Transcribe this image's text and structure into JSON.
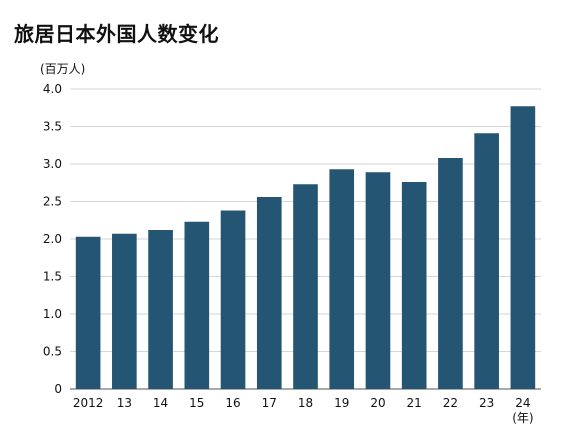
{
  "chart_data": {
    "type": "bar",
    "title": "旅居日本外国人数变化",
    "ylabel": "(百万人)",
    "xlabel": "(年)",
    "categories": [
      "2012",
      "13",
      "14",
      "15",
      "16",
      "17",
      "18",
      "19",
      "20",
      "21",
      "22",
      "23",
      "24"
    ],
    "values": [
      2.03,
      2.07,
      2.12,
      2.23,
      2.38,
      2.56,
      2.73,
      2.93,
      2.89,
      2.76,
      3.08,
      3.41,
      3.77
    ],
    "ylim": [
      0,
      4.0
    ],
    "yticks": [
      "0",
      "0.5",
      "1.0",
      "1.5",
      "2.0",
      "2.5",
      "3.0",
      "3.5",
      "4.0"
    ],
    "grid": true,
    "bar_color": "#245573"
  }
}
